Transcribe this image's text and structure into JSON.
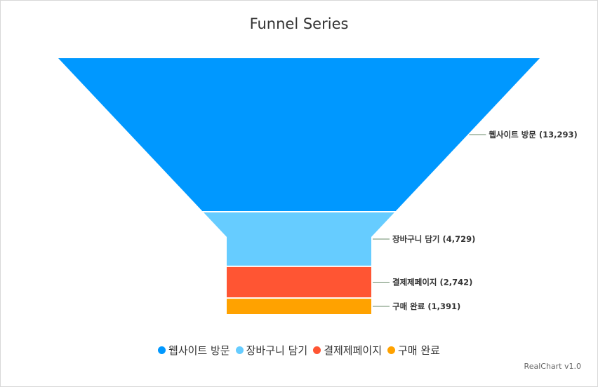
{
  "chart_data": {
    "type": "funnel",
    "title": "Funnel Series",
    "categories": [
      "웹사이트 방문",
      "장바구니 담기",
      "결제제페이지",
      "구매 완료"
    ],
    "values": [
      13293,
      4729,
      2742,
      1391
    ],
    "colors": [
      "#0098ff",
      "#66ccff",
      "#ff5533",
      "#ffa200"
    ],
    "labels": [
      "웹사이트 방문 (13,293)",
      "장바구니 담기 (4,729)",
      "결제제페이지 (2,742)",
      "구매 완료 (1,391)"
    ],
    "legend_position": "bottom"
  },
  "legend": {
    "items": [
      "웹사이트 방문",
      "장바구니 담기",
      "결제제페이지",
      "구매 완료"
    ]
  },
  "credits": "RealChart v1.0"
}
